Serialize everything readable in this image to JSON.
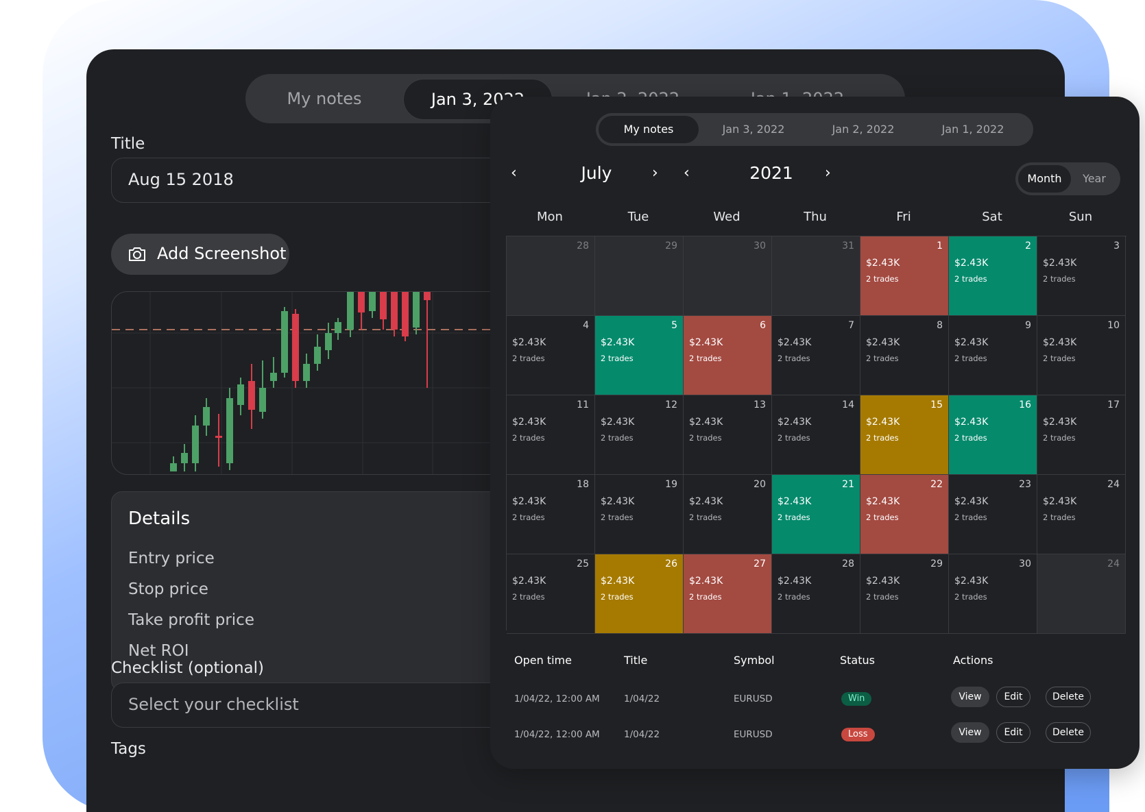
{
  "back": {
    "tabs": [
      "My notes",
      "Jan 3, 2022",
      "Jan 2, 2022",
      "Jan 1, 2022"
    ],
    "title_label": "Title",
    "title_value": "Aug 15 2018",
    "add_screenshot": "Add Screenshot",
    "details": {
      "heading": "Details",
      "rows": [
        "Entry price",
        "Stop price",
        "Take profit price",
        "Net ROI"
      ]
    },
    "checklist_label": "Checklist (optional)",
    "checklist_placeholder": "Select your checklist",
    "tags_label": "Tags"
  },
  "front": {
    "tabs": [
      "My notes",
      "Jan 3, 2022",
      "Jan 2, 2022",
      "Jan 1, 2022"
    ],
    "month": "July",
    "year": "2021",
    "view_toggle": [
      "Month",
      "Year"
    ],
    "weekdays": [
      "Mon",
      "Tue",
      "Wed",
      "Thu",
      "Fri",
      "Sat",
      "Sun"
    ],
    "calendar": [
      [
        {
          "d": "28",
          "s": "muted"
        },
        {
          "d": "29",
          "s": "muted"
        },
        {
          "d": "30",
          "s": "muted"
        },
        {
          "d": "31",
          "s": "muted"
        },
        {
          "d": "1",
          "v": "$2.43K",
          "t": "2 trades",
          "s": "loss"
        },
        {
          "d": "2",
          "v": "$2.43K",
          "t": "2 trades",
          "s": "win"
        },
        {
          "d": "3",
          "v": "$2.43K",
          "t": "2 trades",
          "s": "normal"
        }
      ],
      [
        {
          "d": "4",
          "v": "$2.43K",
          "t": "2 trades",
          "s": "normal"
        },
        {
          "d": "5",
          "v": "$2.43K",
          "t": "2 trades",
          "s": "win"
        },
        {
          "d": "6",
          "v": "$2.43K",
          "t": "2 trades",
          "s": "loss"
        },
        {
          "d": "7",
          "v": "$2.43K",
          "t": "2 trades",
          "s": "normal"
        },
        {
          "d": "8",
          "v": "$2.43K",
          "t": "2 trades",
          "s": "normal"
        },
        {
          "d": "9",
          "v": "$2.43K",
          "t": "2 trades",
          "s": "normal"
        },
        {
          "d": "10",
          "v": "$2.43K",
          "t": "2 trades",
          "s": "normal"
        }
      ],
      [
        {
          "d": "11",
          "v": "$2.43K",
          "t": "2 trades",
          "s": "normal"
        },
        {
          "d": "12",
          "v": "$2.43K",
          "t": "2 trades",
          "s": "normal"
        },
        {
          "d": "13",
          "v": "$2.43K",
          "t": "2 trades",
          "s": "normal"
        },
        {
          "d": "14",
          "v": "$2.43K",
          "t": "2 trades",
          "s": "normal"
        },
        {
          "d": "15",
          "v": "$2.43K",
          "t": "2 trades",
          "s": "neutral"
        },
        {
          "d": "16",
          "v": "$2.43K",
          "t": "2 trades",
          "s": "win"
        },
        {
          "d": "17",
          "v": "$2.43K",
          "t": "2 trades",
          "s": "normal"
        }
      ],
      [
        {
          "d": "18",
          "v": "$2.43K",
          "t": "2 trades",
          "s": "normal"
        },
        {
          "d": "19",
          "v": "$2.43K",
          "t": "2 trades",
          "s": "normal"
        },
        {
          "d": "20",
          "v": "$2.43K",
          "t": "2 trades",
          "s": "normal"
        },
        {
          "d": "21",
          "v": "$2.43K",
          "t": "2 trades",
          "s": "win"
        },
        {
          "d": "22",
          "v": "$2.43K",
          "t": "2 trades",
          "s": "loss"
        },
        {
          "d": "23",
          "v": "$2.43K",
          "t": "2 trades",
          "s": "normal"
        },
        {
          "d": "24",
          "v": "$2.43K",
          "t": "2 trades",
          "s": "normal"
        }
      ],
      [
        {
          "d": "25",
          "v": "$2.43K",
          "t": "2 trades",
          "s": "normal"
        },
        {
          "d": "26",
          "v": "$2.43K",
          "t": "2 trades",
          "s": "neutral"
        },
        {
          "d": "27",
          "v": "$2.43K",
          "t": "2 trades",
          "s": "loss"
        },
        {
          "d": "28",
          "v": "$2.43K",
          "t": "2 trades",
          "s": "normal"
        },
        {
          "d": "29",
          "v": "$2.43K",
          "t": "2 trades",
          "s": "normal"
        },
        {
          "d": "30",
          "v": "$2.43K",
          "t": "2 trades",
          "s": "normal"
        },
        {
          "d": "24",
          "s": "muted"
        }
      ]
    ],
    "table": {
      "headers": [
        "Open time",
        "Title",
        "Symbol",
        "Status",
        "Actions"
      ],
      "rows": [
        {
          "open_time": "1/04/22, 12:00 AM",
          "title": "1/04/22",
          "symbol": "EURUSD",
          "status": "Win"
        },
        {
          "open_time": "1/04/22, 12:00 AM",
          "title": "1/04/22",
          "symbol": "EURUSD",
          "status": "Loss"
        }
      ],
      "actions": [
        "View",
        "Edit",
        "Delete"
      ]
    }
  },
  "colors": {
    "win": "#058a6c",
    "loss": "#a34a41",
    "neutral": "#a67a00",
    "panel": "#202124",
    "win_pill": "#0b5d44",
    "loss_pill": "#c8483f"
  },
  "icons": [
    "camera-icon",
    "chevron-left-icon",
    "chevron-right-icon"
  ]
}
